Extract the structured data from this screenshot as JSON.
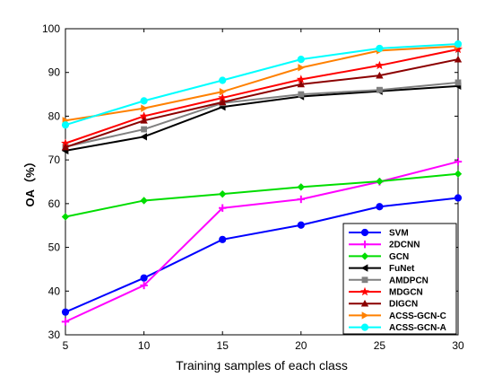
{
  "chart_data": {
    "type": "line",
    "title": "",
    "xlabel": "Training samples of each class",
    "ylabel": "OA（%）",
    "x": [
      5,
      10,
      15,
      20,
      25,
      30
    ],
    "xlim": [
      5,
      30
    ],
    "ylim": [
      30,
      100
    ],
    "xticks": [
      5,
      10,
      15,
      20,
      25,
      30
    ],
    "yticks": [
      30,
      40,
      50,
      60,
      70,
      80,
      90,
      100
    ],
    "grid": false,
    "legend_position": "bottom-right",
    "series": [
      {
        "name": "SVM",
        "color": "#0000ff",
        "marker": "circle",
        "values": [
          35.2,
          43.0,
          51.8,
          55.1,
          59.3,
          61.3
        ]
      },
      {
        "name": "2DCNN",
        "color": "#ff00ff",
        "marker": "plus",
        "values": [
          33.0,
          41.3,
          59.0,
          61.0,
          65.0,
          69.6
        ]
      },
      {
        "name": "GCN",
        "color": "#00dd00",
        "marker": "diamond",
        "values": [
          57.0,
          60.7,
          62.2,
          63.8,
          65.1,
          66.8
        ]
      },
      {
        "name": "FuNet",
        "color": "#000000",
        "marker": "triangle-left",
        "values": [
          72.1,
          75.3,
          82.1,
          84.5,
          85.7,
          86.9
        ]
      },
      {
        "name": "AMDPCN",
        "color": "#808080",
        "marker": "square",
        "values": [
          73.0,
          77.0,
          83.0,
          85.0,
          86.0,
          87.7
        ]
      },
      {
        "name": "MDGCN",
        "color": "#ff0000",
        "marker": "star",
        "values": [
          73.8,
          80.0,
          84.2,
          88.4,
          91.6,
          95.3
        ]
      },
      {
        "name": "DIGCN",
        "color": "#8b0000",
        "marker": "triangle-up",
        "values": [
          72.9,
          79.0,
          83.2,
          87.3,
          89.3,
          93.0
        ]
      },
      {
        "name": "ACSS-GCN-C",
        "color": "#ff8000",
        "marker": "triangle-right",
        "values": [
          79.0,
          81.8,
          85.6,
          91.1,
          95.0,
          96.0
        ]
      },
      {
        "name": "ACSS-GCN-A",
        "color": "#00ffff",
        "marker": "circle",
        "values": [
          78.0,
          83.5,
          88.2,
          93.0,
          95.5,
          96.5
        ]
      }
    ]
  }
}
